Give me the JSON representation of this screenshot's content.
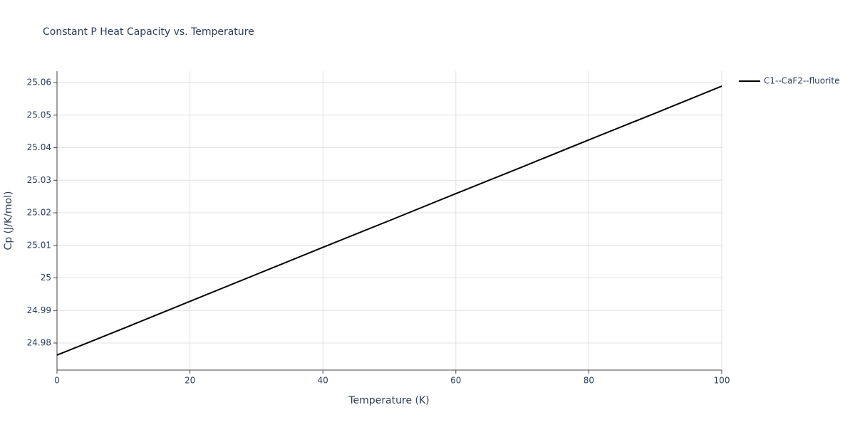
{
  "chart_data": {
    "type": "line",
    "title": "Constant P Heat Capacity vs. Temperature",
    "x_label": "Temperature (K)",
    "y_label": "Cp (J/K/mol)",
    "x": [
      0,
      10,
      20,
      30,
      40,
      50,
      60,
      70,
      80,
      90,
      100
    ],
    "series": [
      {
        "name": "C1--CaF2--fluorite",
        "color": "#000000",
        "values": [
          24.9763,
          24.9845,
          24.9928,
          25.0011,
          25.0094,
          25.0176,
          25.0259,
          25.0341,
          25.0424,
          25.0506,
          25.0589
        ]
      }
    ],
    "xlim": [
      0,
      100
    ],
    "xticks": [
      0,
      20,
      40,
      60,
      80,
      100
    ],
    "ylim": [
      24.9717,
      25.0635
    ],
    "yticks": [
      24.98,
      24.99,
      25,
      25.01,
      25.02,
      25.03,
      25.04,
      25.05,
      25.06
    ],
    "grid": true,
    "legend": "top-right"
  }
}
